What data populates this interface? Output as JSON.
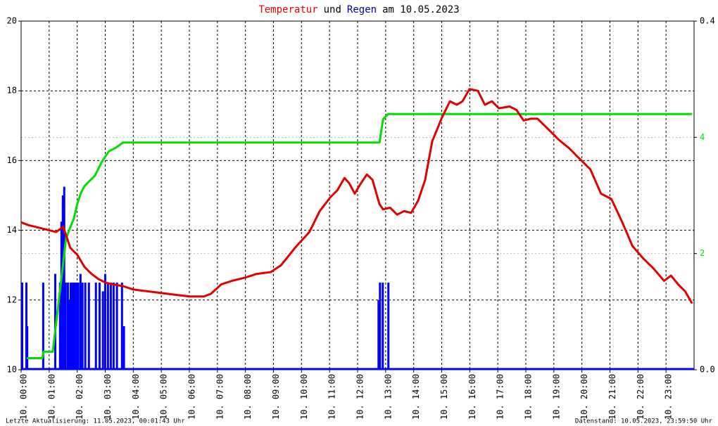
{
  "chart_data": {
    "type": "line",
    "title": [
      "und",
      "am 10.05.2023"
    ],
    "footer_left": "Letzte Aktualisierung: 11.05.2023, 00:01:43 Uhr",
    "footer_right": "Datenstand: 10.05.2023, 23:59:50 Uhr",
    "xlim": [
      0,
      24
    ],
    "xticks": [
      {
        "value": 0,
        "label": "10. 00:00"
      },
      {
        "value": 1,
        "label": "10. 01:00"
      },
      {
        "value": 2,
        "label": "10. 02:00"
      },
      {
        "value": 3,
        "label": "10. 03:00"
      },
      {
        "value": 4,
        "label": "10. 04:00"
      },
      {
        "value": 5,
        "label": "10. 05:00"
      },
      {
        "value": 6,
        "label": "10. 06:00"
      },
      {
        "value": 7,
        "label": "10. 07:00"
      },
      {
        "value": 8,
        "label": "10. 08:00"
      },
      {
        "value": 9,
        "label": "10. 09:00"
      },
      {
        "value": 10,
        "label": "10. 10:00"
      },
      {
        "value": 11,
        "label": "10. 11:00"
      },
      {
        "value": 12,
        "label": "10. 12:00"
      },
      {
        "value": 13,
        "label": "10. 13:00"
      },
      {
        "value": 14,
        "label": "10. 14:00"
      },
      {
        "value": 15,
        "label": "10. 15:00"
      },
      {
        "value": 16,
        "label": "10. 16:00"
      },
      {
        "value": 17,
        "label": "10. 17:00"
      },
      {
        "value": 18,
        "label": "10. 18:00"
      },
      {
        "value": 19,
        "label": "10. 19:00"
      },
      {
        "value": 20,
        "label": "10. 20:00"
      },
      {
        "value": 21,
        "label": "10. 21:00"
      },
      {
        "value": 22,
        "label": "10. 22:00"
      },
      {
        "value": 23,
        "label": "10. 23:00"
      }
    ],
    "ylim": [
      10,
      20
    ],
    "yticks": [
      10,
      12,
      14,
      16,
      18,
      20
    ],
    "y2lim": [
      0,
      6
    ],
    "y2ticks": [
      2,
      4
    ],
    "y2color": "#00e000",
    "y3lim": [
      0,
      0.4
    ],
    "y3ticks": [
      {
        "value": 0,
        "label": "0.0"
      },
      {
        "value": 0.4,
        "label": "0.4"
      }
    ],
    "grid": true,
    "series": [
      {
        "name": "Temperatur",
        "color": "#e00000",
        "axis": "y",
        "x": [
          0,
          0.25,
          0.5,
          0.75,
          1.0,
          1.25,
          1.5,
          1.63,
          1.75,
          2.0,
          2.26,
          2.51,
          2.76,
          3.01,
          3.26,
          3.63,
          4.01,
          4.51,
          5.01,
          5.51,
          6.02,
          6.52,
          6.77,
          7.14,
          7.52,
          8.02,
          8.4,
          8.9,
          9.27,
          9.77,
          10.28,
          10.65,
          11.03,
          11.28,
          11.53,
          11.7,
          11.9,
          12.08,
          12.33,
          12.53,
          12.78,
          12.91,
          13.16,
          13.41,
          13.66,
          13.91,
          14.16,
          14.41,
          14.66,
          14.99,
          15.29,
          15.54,
          15.74,
          15.99,
          16.29,
          16.54,
          16.79,
          17.04,
          17.42,
          17.67,
          17.92,
          18.17,
          18.42,
          18.8,
          19.17,
          19.55,
          19.92,
          20.3,
          20.68,
          21.05,
          21.43,
          21.8,
          22.18,
          22.56,
          22.93,
          23.18,
          23.43,
          23.68,
          23.93
        ],
        "values": [
          14.23,
          14.15,
          14.1,
          14.05,
          14.0,
          13.95,
          14.1,
          13.8,
          13.5,
          13.3,
          12.95,
          12.75,
          12.6,
          12.5,
          12.45,
          12.4,
          12.3,
          12.25,
          12.2,
          12.15,
          12.1,
          12.1,
          12.18,
          12.45,
          12.55,
          12.65,
          12.75,
          12.8,
          13.0,
          13.5,
          13.95,
          14.55,
          14.95,
          15.15,
          15.5,
          15.35,
          15.05,
          15.3,
          15.6,
          15.45,
          14.75,
          14.6,
          14.65,
          14.45,
          14.55,
          14.5,
          14.85,
          15.45,
          16.55,
          17.2,
          17.7,
          17.6,
          17.7,
          18.05,
          18.0,
          17.6,
          17.7,
          17.5,
          17.55,
          17.45,
          17.15,
          17.2,
          17.2,
          16.9,
          16.6,
          16.35,
          16.05,
          15.75,
          15.05,
          14.9,
          14.25,
          13.55,
          13.2,
          12.9,
          12.55,
          12.7,
          12.45,
          12.25,
          11.9
        ]
      },
      {
        "color": "#00e000",
        "axis": "y2",
        "x": [
          0.2,
          0.75,
          0.8,
          1.13,
          1.6,
          1.75,
          1.88,
          2.0,
          2.13,
          2.26,
          2.38,
          2.63,
          2.88,
          3.13,
          3.38,
          3.63,
          12.78,
          12.91,
          13.08,
          23.93
        ],
        "values": [
          0.2,
          0.2,
          0.31,
          0.31,
          2.25,
          2.45,
          2.6,
          2.85,
          3.04,
          3.16,
          3.22,
          3.34,
          3.58,
          3.76,
          3.82,
          3.91,
          3.91,
          4.31,
          4.4,
          4.4
        ]
      },
      {
        "name": "Regen",
        "color": "#0000ff",
        "axis": "y3",
        "type": "bar",
        "x": [
          0,
          0.15,
          0.18,
          0.75,
          1.18,
          1.35,
          1.4,
          1.45,
          1.5,
          1.55,
          1.63,
          1.68,
          1.73,
          1.78,
          1.83,
          1.88,
          1.95,
          2.0,
          2.08,
          2.15,
          2.25,
          2.38,
          2.63,
          2.76,
          2.88,
          2.96,
          3.06,
          3.16,
          3.26,
          3.38,
          3.56,
          3.63,
          12.71,
          12.76,
          12.86,
          13.06
        ],
        "values": [
          0.1,
          0.1,
          0.05,
          0.1,
          0.11,
          0.1,
          0.17,
          0.2,
          0.21,
          0.1,
          0.1,
          0.08,
          0.1,
          0.1,
          0.1,
          0.1,
          0.1,
          0.1,
          0.11,
          0.1,
          0.1,
          0.1,
          0.1,
          0.1,
          0.09,
          0.11,
          0.1,
          0.1,
          0.1,
          0.1,
          0.1,
          0.05,
          0.08,
          0.1,
          0.1,
          0.1
        ]
      }
    ]
  }
}
